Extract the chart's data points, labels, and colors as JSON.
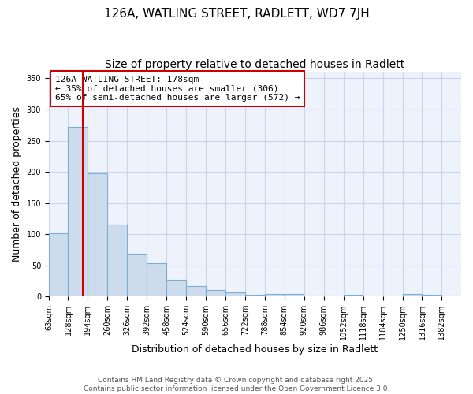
{
  "title1": "126A, WATLING STREET, RADLETT, WD7 7JH",
  "title2": "Size of property relative to detached houses in Radlett",
  "xlabel": "Distribution of detached houses by size in Radlett",
  "ylabel": "Number of detached properties",
  "bar_color": "#ccdcec",
  "bar_edge_color": "#7bafd4",
  "background_color": "#ffffff",
  "axes_background": "#eef2fb",
  "grid_color": "#c8d4f0",
  "bins": [
    63,
    128,
    194,
    260,
    326,
    392,
    458,
    524,
    590,
    656,
    722,
    788,
    854,
    920,
    986,
    1052,
    1118,
    1184,
    1250,
    1316,
    1382
  ],
  "values": [
    102,
    272,
    197,
    115,
    68,
    54,
    27,
    17,
    10,
    6,
    3,
    4,
    4,
    1,
    1,
    3,
    0,
    0,
    4,
    3,
    2
  ],
  "tick_labels": [
    "63sqm",
    "128sqm",
    "194sqm",
    "260sqm",
    "326sqm",
    "392sqm",
    "458sqm",
    "524sqm",
    "590sqm",
    "656sqm",
    "722sqm",
    "788sqm",
    "854sqm",
    "920sqm",
    "986sqm",
    "1052sqm",
    "1118sqm",
    "1184sqm",
    "1250sqm",
    "1316sqm",
    "1382sqm"
  ],
  "red_line_x": 178,
  "red_line_color": "#cc0000",
  "annotation_line1": "126A WATLING STREET: 178sqm",
  "annotation_line2": "← 35% of detached houses are smaller (306)",
  "annotation_line3": "65% of semi-detached houses are larger (572) →",
  "ylim": [
    0,
    360
  ],
  "yticks": [
    0,
    50,
    100,
    150,
    200,
    250,
    300,
    350
  ],
  "footer_text": "Contains HM Land Registry data © Crown copyright and database right 2025.\nContains public sector information licensed under the Open Government Licence 3.0.",
  "title_fontsize": 11,
  "subtitle_fontsize": 10,
  "axis_label_fontsize": 9,
  "tick_fontsize": 7,
  "annotation_fontsize": 8,
  "footer_fontsize": 6.5
}
